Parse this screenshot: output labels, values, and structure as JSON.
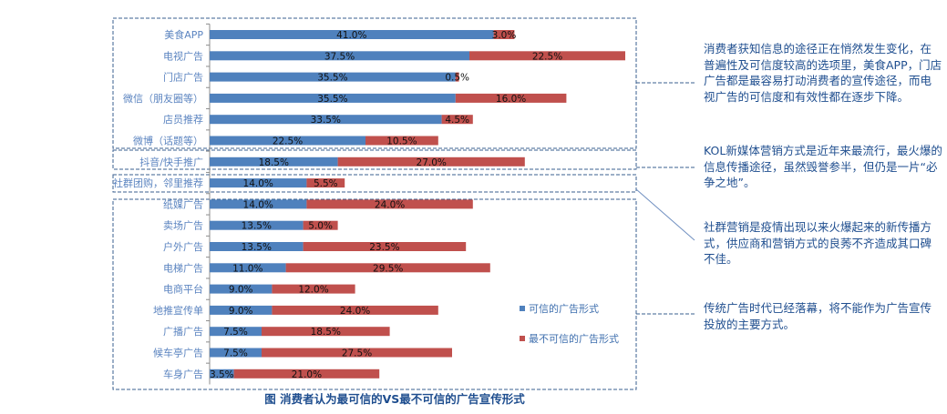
{
  "chart_data": {
    "type": "bar",
    "stacked": true,
    "orientation": "horizontal",
    "title": "图  消费者认为最可信的VS最不可信的广告宣传形式",
    "categories": [
      "美食APP",
      "电视广告",
      "门店广告",
      "微信（朋友圈等）",
      "店员推荐",
      "微博（话题等）",
      "抖音/快手推广",
      "社群团购，邻里推荐",
      "纸媒广告",
      "卖场广告",
      "户外广告",
      "电梯广告",
      "电商平台",
      "地推宣传单",
      "广播广告",
      "候车亭广告",
      "车身广告"
    ],
    "series": [
      {
        "name": "可信的广告形式",
        "color": "#4f81bd",
        "values": [
          41.0,
          37.5,
          35.5,
          35.5,
          33.5,
          22.5,
          18.5,
          14.0,
          14.0,
          13.5,
          13.5,
          11.0,
          9.0,
          9.0,
          7.5,
          7.5,
          3.5
        ]
      },
      {
        "name": "最不可信的广告形式",
        "color": "#c0504d",
        "values": [
          3.0,
          22.5,
          0.5,
          16.0,
          4.5,
          10.5,
          27.0,
          5.5,
          24.0,
          5.0,
          23.5,
          29.5,
          12.0,
          24.0,
          18.5,
          27.5,
          21.0
        ]
      }
    ],
    "value_format": "%",
    "legend_position": "bottom-right inside",
    "grid": false
  },
  "notes": [
    "消费者获知信息的途径正在悄然发生变化，在普遍性及可信度较高的选项里，美食APP，门店广告都是最容易打动消费者的宣传途径，而电视广告的可信度和有效性都在逐步下降。",
    "KOL新媒体营销方式是近年来最流行，最火爆的信息传播途径，虽然毁誉参半，但仍是一片“必争之地”。",
    "社群营销是疫情出现以来火爆起来的新传播方式，供应商和营销方式的良莠不齐造成其口碑不佳。",
    "传统广告时代已经落幕，将不能作为广告宣传投放的主要方式。"
  ],
  "colors": {
    "text": "#1f4e8f",
    "axis_label": "#5b84c0",
    "box": "#3a5f8f"
  }
}
